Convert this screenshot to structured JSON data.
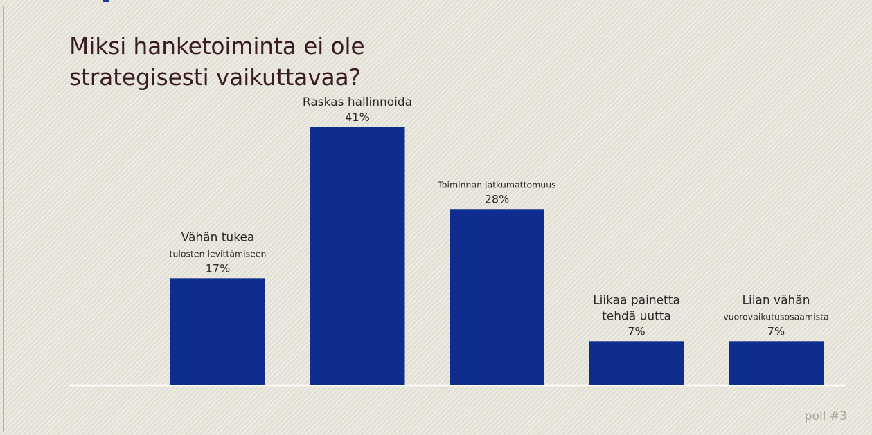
{
  "title_lines": [
    "Miksi hanketoiminta ei ole",
    "strategisesti vaikuttavaa?"
  ],
  "poll_tag": "poll #3",
  "colors": {
    "bar": "#0f2d8c",
    "label": "#2a2a2a",
    "baseline": "#ffffff",
    "background": "#e7e4d9"
  },
  "chart_data": {
    "type": "bar",
    "title": "Miksi hanketoiminta ei ole strategisesti vaikuttavaa?",
    "unit": "%",
    "ylim": [
      0,
      41
    ],
    "grid": false,
    "categories": [
      {
        "lines": [
          "Vähän tukea",
          "tulosten levittämiseen"
        ],
        "value": 17,
        "value_label": "17%"
      },
      {
        "lines": [
          "Raskas hallinnoida"
        ],
        "value": 41,
        "value_label": "41%"
      },
      {
        "lines": [
          "Toiminnan jatkumattomuus"
        ],
        "value": 28,
        "value_label": "28%"
      },
      {
        "lines": [
          "Liikaa painetta",
          "tehdä uutta"
        ],
        "value": 7,
        "value_label": "7%"
      },
      {
        "lines": [
          "Liian vähän",
          "vuorovaikutusosaamista"
        ],
        "value": 7,
        "value_label": "7%"
      }
    ]
  }
}
